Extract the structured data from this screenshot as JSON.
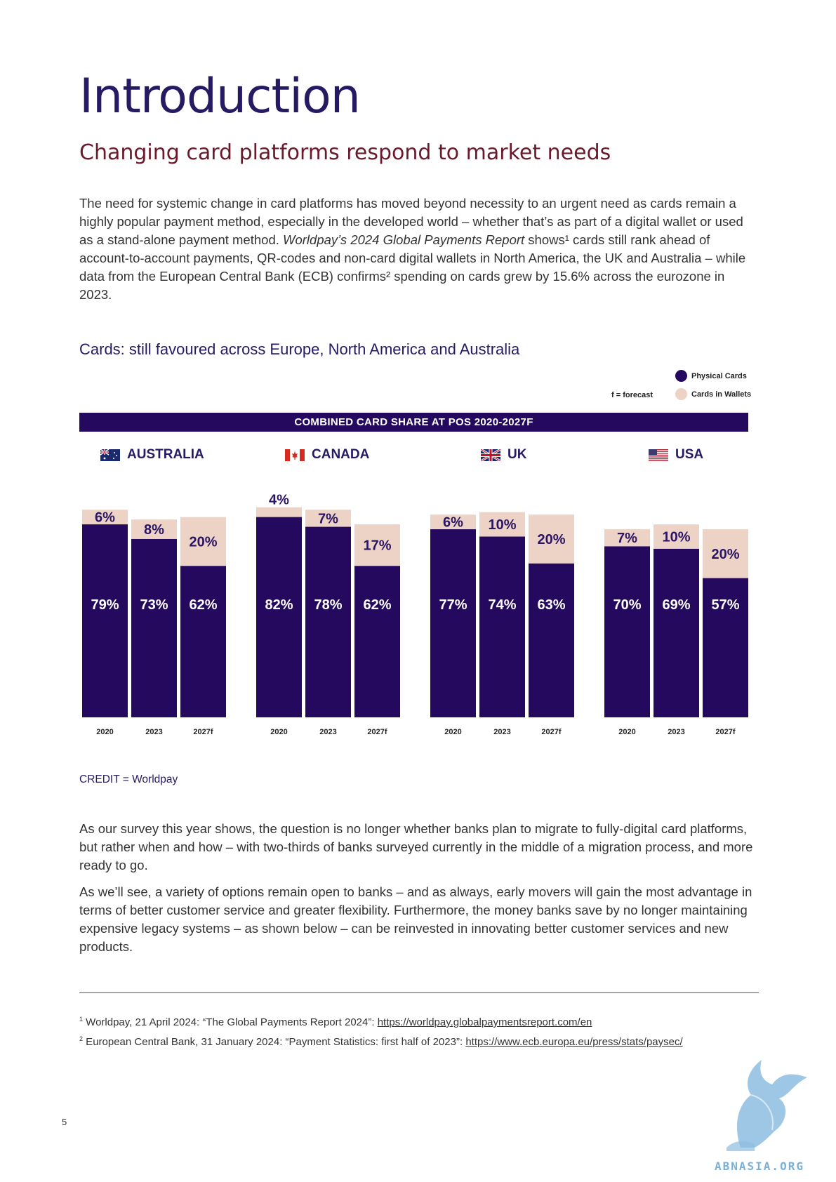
{
  "page": {
    "title": "Introduction",
    "subtitle": "Changing card platforms respond to market needs",
    "intro_paragraph_before_italic": "The need for systemic change in card platforms has moved beyond necessity to an urgent need as cards remain a highly popular payment method, especially in the developed world – whether that’s as part of a digital wallet or used as a stand-alone payment method. ",
    "intro_paragraph_italic": "Worldpay’s 2024 Global Payments Report",
    "intro_paragraph_after_italic": " shows¹ cards still rank ahead of account-to-account payments, QR-codes and non-card digital wallets in North America, the UK and Australia – while data from the European Central Bank (ECB) confirms² spending on cards grew by 15.6% across the eurozone in 2023.",
    "chart_heading": "Cards: still favoured across Europe, North America and Australia",
    "forecast_note": "f = forecast",
    "credit": "CREDIT = Worldpay",
    "paragraph_2": "As our survey this year shows, the question is no longer whether banks plan to migrate to fully-digital card platforms, but rather when and how – with two-thirds of banks surveyed currently in the middle of a migration process, and more ready to go.",
    "paragraph_3": "As we’ll see, a variety of options remain open to banks – and as always, early movers will gain the most advantage in terms of better customer service and greater flexibility. Furthermore, the money banks save by no longer maintaining expensive legacy systems – as shown below – can be reinvested in innovating better customer services and new products.",
    "footnote_1_marker": "1",
    "footnote_1_text": " Worldpay, 21 April 2024: “The Global Payments Report 2024”: ",
    "footnote_1_link": "https://worldpay.globalpaymentsreport.com/en",
    "footnote_2_marker": "2",
    "footnote_2_text": " European Central Bank, 31 January 2024: “Payment Statistics: first half of 2023”: ",
    "footnote_2_link": "https://www.ecb.europa.eu/press/stats/paysec/",
    "page_number": "5",
    "watermark_text": "ABNASIA.ORG"
  },
  "colors": {
    "physical": "#24095e",
    "wallet": "#edd3c6",
    "title": "#261a63",
    "subtitle": "#6b1a2b"
  },
  "chart_data": {
    "type": "bar",
    "stacked": true,
    "title": "COMBINED CARD SHARE AT POS 2020-2027F",
    "legend": [
      {
        "name": "Physical Cards",
        "color": "#24095e"
      },
      {
        "name": "Cards in Wallets",
        "color": "#edd3c6"
      }
    ],
    "legend_position": "top-right",
    "ylim": [
      0,
      100
    ],
    "groups": [
      {
        "country": "AUSTRALIA",
        "categories": [
          "2020",
          "2023",
          "2027f"
        ],
        "physical": [
          79,
          73,
          62
        ],
        "wallet": [
          6,
          8,
          20
        ],
        "physical_labels": [
          "79%",
          "73%",
          "62%"
        ],
        "wallet_labels": [
          "6%",
          "8%",
          "20%"
        ]
      },
      {
        "country": "CANADA",
        "categories": [
          "2020",
          "2023",
          "2027f"
        ],
        "physical": [
          82,
          78,
          62
        ],
        "wallet": [
          4,
          7,
          17
        ],
        "physical_labels": [
          "82%",
          "78%",
          "62%"
        ],
        "wallet_labels": [
          "4%",
          "7%",
          "17%"
        ]
      },
      {
        "country": "UK",
        "categories": [
          "2020",
          "2023",
          "2027f"
        ],
        "physical": [
          77,
          74,
          63
        ],
        "wallet": [
          6,
          10,
          20
        ],
        "physical_labels": [
          "77%",
          "74%",
          "63%"
        ],
        "wallet_labels": [
          "6%",
          "10%",
          "20%"
        ]
      },
      {
        "country": "USA",
        "categories": [
          "2020",
          "2023",
          "2027f"
        ],
        "physical": [
          70,
          69,
          57
        ],
        "wallet": [
          7,
          10,
          20
        ],
        "physical_labels": [
          "70%",
          "69%",
          "57%"
        ],
        "wallet_labels": [
          "7%",
          "10%",
          "20%"
        ]
      }
    ]
  }
}
